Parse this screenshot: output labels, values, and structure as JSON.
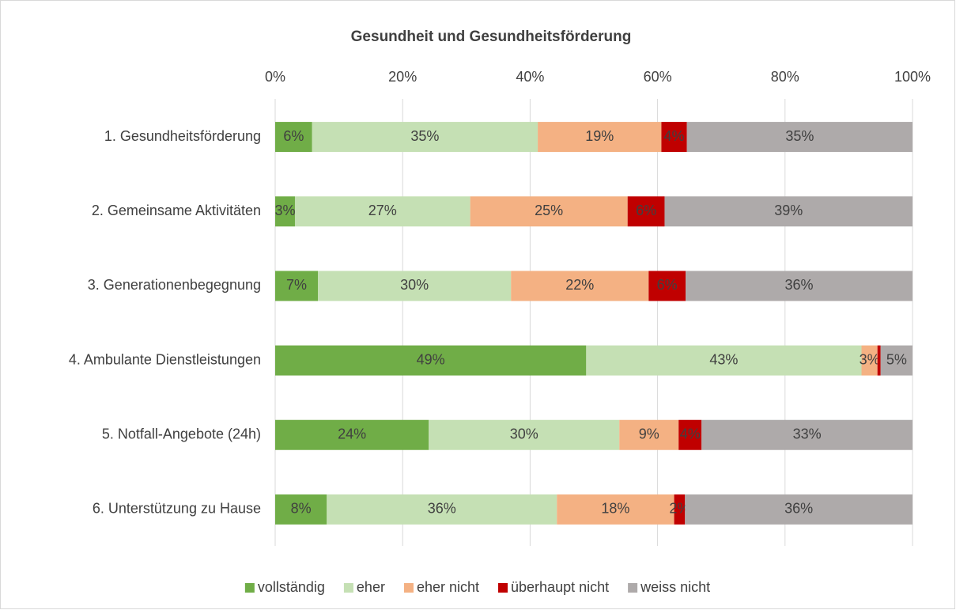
{
  "chart_data": {
    "type": "stacked-bar-horizontal",
    "title": "Gesundheit und Gesundheitsförderung",
    "categories": [
      "1. Gesundheitsförderung",
      "2. Gemeinsame Aktivitäten",
      "3. Generationenbegegnung",
      "4. Ambulante Dienstleistungen",
      "5. Notfall-Angebote (24h)",
      "6. Unterstützung zu Hause"
    ],
    "series": [
      {
        "name": "vollständig",
        "color": "#70ad47",
        "values": [
          5.8,
          3.1,
          6.7,
          48.8,
          24.1,
          8.1
        ],
        "value_labels": [
          "6%",
          "3%",
          "7%",
          "49%",
          "24%",
          "8%"
        ]
      },
      {
        "name": "eher",
        "color": "#c5e0b4",
        "values": [
          35.4,
          27.5,
          30.3,
          43.2,
          29.9,
          36.1
        ],
        "value_labels": [
          "35%",
          "27%",
          "30%",
          "43%",
          "30%",
          "36%"
        ]
      },
      {
        "name": "eher nicht",
        "color": "#f4b183",
        "values": [
          19.4,
          24.7,
          21.6,
          2.5,
          9.3,
          18.4
        ],
        "value_labels": [
          "19%",
          "25%",
          "22%",
          "3%",
          "9%",
          "18%"
        ]
      },
      {
        "name": "überhaupt nicht",
        "color": "#c00000",
        "values": [
          4.0,
          5.8,
          5.8,
          0.5,
          3.6,
          1.7
        ],
        "value_labels": [
          "4%",
          "6%",
          "6%",
          null,
          "4%",
          "2%"
        ]
      },
      {
        "name": "weiss nicht",
        "color": "#aeaaaa",
        "values": [
          35.4,
          38.9,
          35.6,
          5.0,
          33.1,
          35.7
        ],
        "value_labels": [
          "35%",
          "39%",
          "36%",
          "5%",
          "33%",
          "36%"
        ]
      }
    ],
    "xlim": [
      0,
      100
    ],
    "xticks": [
      {
        "value": 0,
        "label": "0%"
      },
      {
        "value": 20,
        "label": "20%"
      },
      {
        "value": 40,
        "label": "40%"
      },
      {
        "value": 60,
        "label": "60%"
      },
      {
        "value": 80,
        "label": "80%"
      },
      {
        "value": 100,
        "label": "100%"
      }
    ],
    "grid": true,
    "legend": "bottom"
  }
}
